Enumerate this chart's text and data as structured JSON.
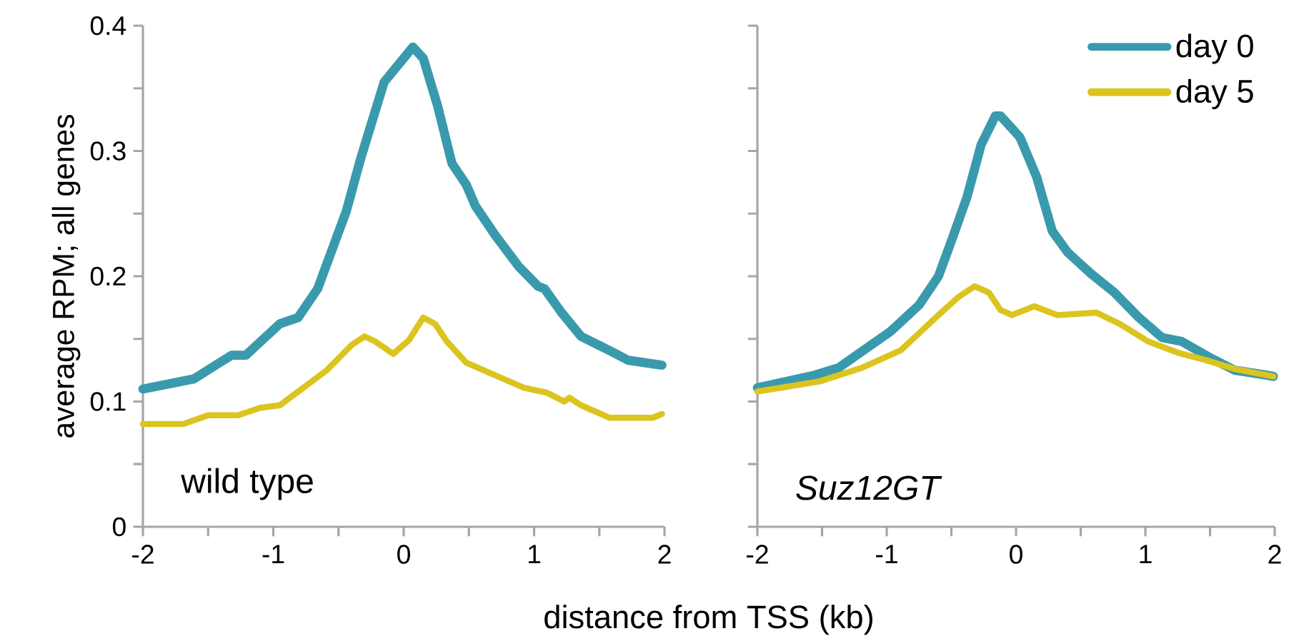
{
  "chart_data": [
    {
      "type": "line",
      "ylabel": "average RPM; all genes",
      "xlabel": "distance from TSS (kb)",
      "annotations": [
        "wild type"
      ],
      "xlim": [
        -2,
        2
      ],
      "ylim": [
        0,
        0.4
      ],
      "xticks": [
        -2,
        {
          "value": -1.5,
          "label": null
        },
        -1,
        {
          "value": -0.5,
          "label": null
        },
        0,
        {
          "value": 0.5,
          "label": null
        },
        1,
        {
          "value": 1.5,
          "label": null
        },
        2
      ],
      "yticks": [
        0,
        {
          "value": 0.05,
          "label": null
        },
        0.1,
        {
          "value": 0.15,
          "label": null
        },
        0.2,
        {
          "value": 0.25,
          "label": null
        },
        0.3,
        {
          "value": 0.35,
          "label": null
        },
        0.4
      ],
      "grid": false,
      "legend": false,
      "series": [
        {
          "color": "#3a9aad",
          "x": [
            -2,
            -1.61,
            -1.32,
            -1.21,
            -0.95,
            -0.81,
            -0.66,
            -0.55,
            -0.44,
            -0.33,
            -0.15,
            0.07,
            0.15,
            0.26,
            0.37,
            0.48,
            0.55,
            0.7,
            0.88,
            1.03,
            1.08,
            1.21,
            1.36,
            1.61,
            1.72,
            1.98
          ],
          "values": [
            0.11,
            0.118,
            0.137,
            0.137,
            0.162,
            0.167,
            0.19,
            0.221,
            0.252,
            0.294,
            0.355,
            0.383,
            0.374,
            0.336,
            0.29,
            0.273,
            0.256,
            0.233,
            0.208,
            0.192,
            0.19,
            0.171,
            0.152,
            0.139,
            0.133,
            0.129
          ]
        },
        {
          "color": "#dcc41e",
          "x": [
            -2,
            -1.69,
            -1.5,
            -1.27,
            -1.1,
            -0.95,
            -0.73,
            -0.59,
            -0.4,
            -0.3,
            -0.22,
            -0.08,
            0.04,
            0.15,
            0.24,
            0.33,
            0.48,
            0.7,
            0.92,
            1.1,
            1.23,
            1.27,
            1.36,
            1.58,
            1.91,
            1.98
          ],
          "values": [
            0.082,
            0.082,
            0.089,
            0.089,
            0.095,
            0.097,
            0.114,
            0.125,
            0.145,
            0.152,
            0.148,
            0.138,
            0.149,
            0.167,
            0.162,
            0.148,
            0.131,
            0.121,
            0.111,
            0.107,
            0.1,
            0.103,
            0.097,
            0.087,
            0.087,
            0.09
          ]
        }
      ]
    },
    {
      "type": "line",
      "annotations": [
        "Suz12GT"
      ],
      "xlim": [
        -2,
        2
      ],
      "ylim": [
        0,
        0.4
      ],
      "tick_labels": "x",
      "xticks": [
        -2,
        {
          "value": -1.5,
          "label": null
        },
        -1,
        {
          "value": -0.5,
          "label": null
        },
        0,
        {
          "value": 0.5,
          "label": null
        },
        1,
        {
          "value": 1.5,
          "label": null
        },
        2
      ],
      "yticks": [
        0,
        {
          "value": 0.05,
          "label": null
        },
        0.1,
        {
          "value": 0.15,
          "label": null
        },
        0.2,
        {
          "value": 0.25,
          "label": null
        },
        0.3,
        {
          "value": 0.35,
          "label": null
        },
        0.4
      ],
      "grid": false,
      "legend": "top right",
      "series": [
        {
          "name": "day 0",
          "color": "#3a9aad",
          "x": [
            -2,
            -1.56,
            -1.37,
            -1.15,
            -0.97,
            -0.75,
            -0.6,
            -0.49,
            -0.38,
            -0.27,
            -0.16,
            -0.12,
            0.03,
            0.16,
            0.28,
            0.4,
            0.58,
            0.76,
            0.95,
            1.13,
            1.28,
            1.5,
            1.69,
            1.94,
            1.99
          ],
          "values": [
            0.111,
            0.121,
            0.127,
            0.143,
            0.156,
            0.177,
            0.2,
            0.231,
            0.263,
            0.305,
            0.328,
            0.328,
            0.311,
            0.279,
            0.236,
            0.219,
            0.202,
            0.187,
            0.167,
            0.151,
            0.148,
            0.135,
            0.125,
            0.121,
            0.12
          ]
        },
        {
          "name": "day 5",
          "color": "#dcc41e",
          "x": [
            -2,
            -1.52,
            -1.19,
            -0.89,
            -0.6,
            -0.45,
            -0.32,
            -0.21,
            -0.12,
            -0.03,
            0.14,
            0.32,
            0.62,
            0.8,
            1.02,
            1.25,
            1.47,
            1.69,
            1.99
          ],
          "values": [
            0.108,
            0.116,
            0.127,
            0.141,
            0.169,
            0.183,
            0.192,
            0.187,
            0.173,
            0.169,
            0.176,
            0.169,
            0.171,
            0.162,
            0.148,
            0.139,
            0.133,
            0.126,
            0.12
          ]
        }
      ]
    }
  ]
}
